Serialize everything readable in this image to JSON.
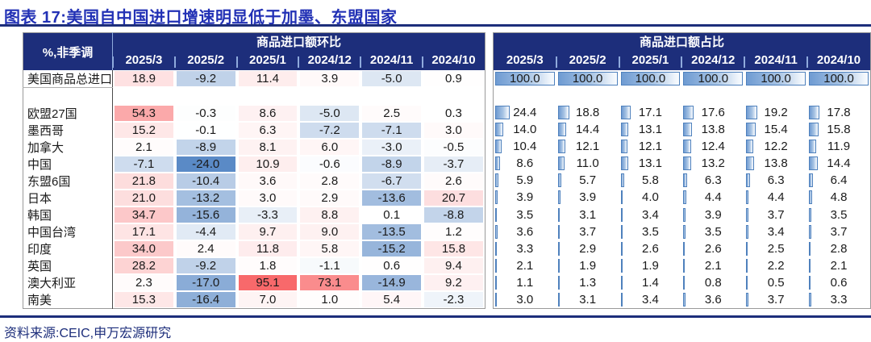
{
  "title": "图表 17:美国自中国进口增速明显低于加墨、东盟国家",
  "source": "资料来源:CEIC,申万宏源研究",
  "unit_label": "%,非季调",
  "colors": {
    "navy": "#1d2e7b",
    "title_blue": "#2231b5",
    "heat_positive_max": "#f8696b",
    "heat_negative_max": "#5a8ac6",
    "bar_border": "#4f81bd",
    "bar_fill": "#6f9bd2"
  },
  "chart_data": {
    "type": "table",
    "title": "美国自中国进口增速明显低于加墨、东盟国家",
    "figure_label": "图表 17",
    "unit_note": "%,非季调",
    "group_headers": [
      "商品进口额环比",
      "商品进口额占比"
    ],
    "columns": [
      "2025/3",
      "2025/2",
      "2025/1",
      "2024/12",
      "2024/11",
      "2024/10"
    ],
    "rows": [
      {
        "label": "美国商品总进口",
        "total": true,
        "mom": [
          18.9,
          -9.2,
          11.4,
          3.9,
          -5.0,
          0.9
        ],
        "share": [
          100.0,
          100.0,
          100.0,
          100.0,
          100.0,
          100.0
        ]
      },
      {
        "label": "欧盟27国",
        "mom": [
          54.3,
          -0.3,
          8.6,
          -5.0,
          2.5,
          0.3
        ],
        "share": [
          24.4,
          18.8,
          17.1,
          17.6,
          19.2,
          17.8
        ]
      },
      {
        "label": "墨西哥",
        "mom": [
          15.2,
          -0.1,
          6.3,
          -7.2,
          -7.1,
          3.0
        ],
        "share": [
          14.0,
          14.4,
          13.1,
          13.8,
          15.4,
          15.8
        ]
      },
      {
        "label": "加拿大",
        "mom": [
          2.1,
          -8.9,
          8.1,
          6.0,
          -3.0,
          -0.5
        ],
        "share": [
          10.4,
          12.1,
          12.1,
          12.4,
          12.2,
          11.9
        ]
      },
      {
        "label": "中国",
        "mom": [
          -7.1,
          -24.0,
          10.9,
          -0.6,
          -8.9,
          -3.7
        ],
        "share": [
          8.6,
          11.0,
          13.1,
          13.2,
          13.8,
          14.4
        ]
      },
      {
        "label": "东盟6国",
        "mom": [
          21.8,
          -10.4,
          3.6,
          2.8,
          -6.7,
          2.6
        ],
        "share": [
          5.9,
          5.7,
          5.8,
          6.3,
          6.3,
          6.4
        ]
      },
      {
        "label": "日本",
        "mom": [
          21.0,
          -13.2,
          3.0,
          2.9,
          -13.6,
          20.7
        ],
        "share": [
          3.9,
          3.9,
          4.0,
          4.4,
          4.4,
          4.8
        ]
      },
      {
        "label": "韩国",
        "mom": [
          34.7,
          -15.6,
          -3.3,
          8.8,
          0.1,
          -8.8
        ],
        "share": [
          3.5,
          3.1,
          3.4,
          3.9,
          3.7,
          3.5
        ]
      },
      {
        "label": "中国台湾",
        "mom": [
          17.1,
          -4.4,
          9.7,
          9.0,
          -13.5,
          1.2
        ],
        "share": [
          3.6,
          3.7,
          3.5,
          3.5,
          3.4,
          3.7
        ]
      },
      {
        "label": "印度",
        "mom": [
          34.0,
          2.4,
          11.8,
          5.8,
          -15.2,
          15.8
        ],
        "share": [
          3.3,
          2.9,
          2.6,
          2.6,
          2.5,
          2.8
        ]
      },
      {
        "label": "英国",
        "mom": [
          28.2,
          -9.2,
          1.8,
          -1.1,
          0.6,
          9.4
        ],
        "share": [
          2.1,
          1.9,
          1.9,
          2.1,
          2.2,
          2.1
        ]
      },
      {
        "label": "澳大利亚",
        "mom": [
          2.3,
          -17.0,
          95.1,
          73.1,
          -14.9,
          9.2
        ],
        "share": [
          1.1,
          1.3,
          1.4,
          0.8,
          0.5,
          0.6
        ]
      },
      {
        "label": "南美",
        "mom": [
          15.3,
          -16.4,
          7.0,
          1.0,
          5.4,
          -2.3
        ],
        "share": [
          3.0,
          3.1,
          3.4,
          3.6,
          3.7,
          3.3
        ]
      }
    ]
  }
}
